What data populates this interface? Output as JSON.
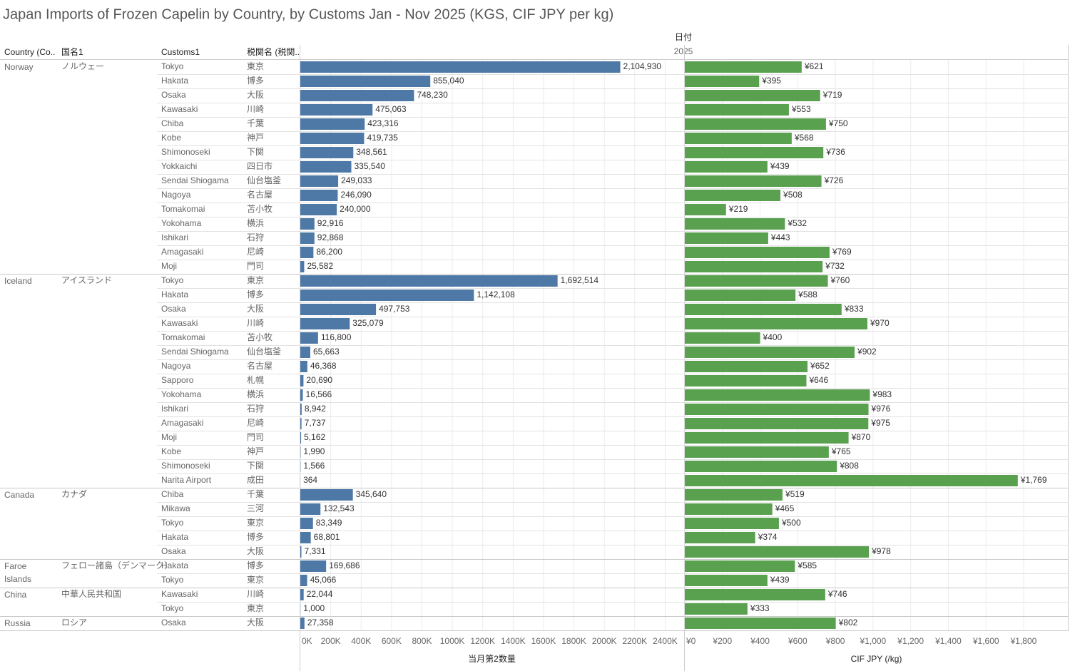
{
  "chart_data": {
    "type": "bar",
    "orientation": "horizontal",
    "title": "Japan Imports of Frozen Capelin by Country, by Customs Jan - Nov 2025 (KGS, CIF JPY per kg)",
    "column_headers": [
      "Country (Co..",
      "国名1",
      "Customs1",
      "税関名 (税関.."
    ],
    "date_header": "日付",
    "year": "2025",
    "groups": [
      {
        "country": "Norway",
        "country_jp": "ノルウェー",
        "customs": [
          "Tokyo",
          "Hakata",
          "Osaka",
          "Kawasaki",
          "Chiba",
          "Kobe",
          "Shimonoseki",
          "Yokkaichi",
          "Sendai Shiogama",
          "Nagoya",
          "Tomakomai",
          "Yokohama",
          "Ishikari",
          "Amagasaki",
          "Moji"
        ],
        "customs_jp": [
          "東京",
          "博多",
          "大阪",
          "川崎",
          "千葉",
          "神戸",
          "下関",
          "四日市",
          "仙台塩釜",
          "名古屋",
          "苫小牧",
          "横浜",
          "石狩",
          "尼崎",
          "門司"
        ]
      },
      {
        "country": "Iceland",
        "country_jp": "アイスランド",
        "customs": [
          "Tokyo",
          "Hakata",
          "Osaka",
          "Kawasaki",
          "Tomakomai",
          "Sendai Shiogama",
          "Nagoya",
          "Sapporo",
          "Yokohama",
          "Ishikari",
          "Amagasaki",
          "Moji",
          "Kobe",
          "Shimonoseki",
          "Narita Airport"
        ],
        "customs_jp": [
          "東京",
          "博多",
          "大阪",
          "川崎",
          "苫小牧",
          "仙台塩釜",
          "名古屋",
          "札幌",
          "横浜",
          "石狩",
          "尼崎",
          "門司",
          "神戸",
          "下関",
          "成田"
        ]
      },
      {
        "country": "Canada",
        "country_jp": "カナダ",
        "customs": [
          "Chiba",
          "Mikawa",
          "Tokyo",
          "Hakata",
          "Osaka"
        ],
        "customs_jp": [
          "千葉",
          "三河",
          "東京",
          "博多",
          "大阪"
        ]
      },
      {
        "country": "Faroe Islands",
        "country_jp": "フェロー諸島（デンマーク）",
        "customs": [
          "Hakata",
          "Tokyo"
        ],
        "customs_jp": [
          "博多",
          "東京"
        ]
      },
      {
        "country": "China",
        "country_jp": "中華人民共和国",
        "customs": [
          "Kawasaki",
          "Tokyo"
        ],
        "customs_jp": [
          "川崎",
          "東京"
        ]
      },
      {
        "country": "Russia",
        "country_jp": "ロシア",
        "customs": [
          "Osaka"
        ],
        "customs_jp": [
          "大阪"
        ]
      }
    ],
    "series": [
      {
        "name": "当月第2数量",
        "color": "#4e79a7",
        "values": [
          2104930,
          855040,
          748230,
          475063,
          423316,
          419735,
          348561,
          335540,
          249033,
          246090,
          240000,
          92916,
          92868,
          86200,
          25582,
          1692514,
          1142108,
          497753,
          325079,
          116800,
          65663,
          46368,
          20690,
          16566,
          8942,
          7737,
          5162,
          1990,
          1566,
          364,
          345640,
          132543,
          83349,
          68801,
          7331,
          169686,
          45066,
          22044,
          1000,
          27358
        ],
        "value_labels": [
          "2,104,930",
          "855,040",
          "748,230",
          "475,063",
          "423,316",
          "419,735",
          "348,561",
          "335,540",
          "249,033",
          "246,090",
          "240,000",
          "92,916",
          "92,868",
          "86,200",
          "25,582",
          "1,692,514",
          "1,142,108",
          "497,753",
          "325,079",
          "116,800",
          "65,663",
          "46,368",
          "20,690",
          "16,566",
          "8,942",
          "7,737",
          "5,162",
          "1,990",
          "1,566",
          "364",
          "345,640",
          "132,543",
          "83,349",
          "68,801",
          "7,331",
          "169,686",
          "45,066",
          "22,044",
          "1,000",
          "27,358"
        ],
        "xlim": [
          0,
          2520000
        ],
        "xticks": [
          {
            "value": 0,
            "label": "0K"
          },
          {
            "value": 200000,
            "label": "200K"
          },
          {
            "value": 400000,
            "label": "400K"
          },
          {
            "value": 600000,
            "label": "600K"
          },
          {
            "value": 800000,
            "label": "800K"
          },
          {
            "value": 1000000,
            "label": "1000K"
          },
          {
            "value": 1200000,
            "label": "1200K"
          },
          {
            "value": 1400000,
            "label": "1400K"
          },
          {
            "value": 1600000,
            "label": "1600K"
          },
          {
            "value": 1800000,
            "label": "1800K"
          },
          {
            "value": 2000000,
            "label": "2000K"
          },
          {
            "value": 2200000,
            "label": "2200K"
          },
          {
            "value": 2400000,
            "label": "2400K"
          }
        ]
      },
      {
        "name": "CIF JPY (/kg)",
        "color": "#59a14f",
        "values": [
          621,
          395,
          719,
          553,
          750,
          568,
          736,
          439,
          726,
          508,
          219,
          532,
          443,
          769,
          732,
          760,
          588,
          833,
          970,
          400,
          902,
          652,
          646,
          983,
          976,
          975,
          870,
          765,
          808,
          1769,
          519,
          465,
          500,
          374,
          978,
          585,
          439,
          746,
          333,
          802
        ],
        "value_labels": [
          "¥621",
          "¥395",
          "¥719",
          "¥553",
          "¥750",
          "¥568",
          "¥736",
          "¥439",
          "¥726",
          "¥508",
          "¥219",
          "¥532",
          "¥443",
          "¥769",
          "¥732",
          "¥760",
          "¥588",
          "¥833",
          "¥970",
          "¥400",
          "¥902",
          "¥652",
          "¥646",
          "¥983",
          "¥976",
          "¥975",
          "¥870",
          "¥765",
          "¥808",
          "¥1,769",
          "¥519",
          "¥465",
          "¥500",
          "¥374",
          "¥978",
          "¥585",
          "¥439",
          "¥746",
          "¥333",
          "¥802"
        ],
        "xlim": [
          0,
          2035
        ],
        "xticks": [
          {
            "value": 0,
            "label": "¥0"
          },
          {
            "value": 200,
            "label": "¥200"
          },
          {
            "value": 400,
            "label": "¥400"
          },
          {
            "value": 600,
            "label": "¥600"
          },
          {
            "value": 800,
            "label": "¥800"
          },
          {
            "value": 1000,
            "label": "¥1,000"
          },
          {
            "value": 1200,
            "label": "¥1,200"
          },
          {
            "value": 1400,
            "label": "¥1,400"
          },
          {
            "value": 1600,
            "label": "¥1,600"
          },
          {
            "value": 1800,
            "label": "¥1,800"
          }
        ]
      }
    ],
    "grid": true
  }
}
